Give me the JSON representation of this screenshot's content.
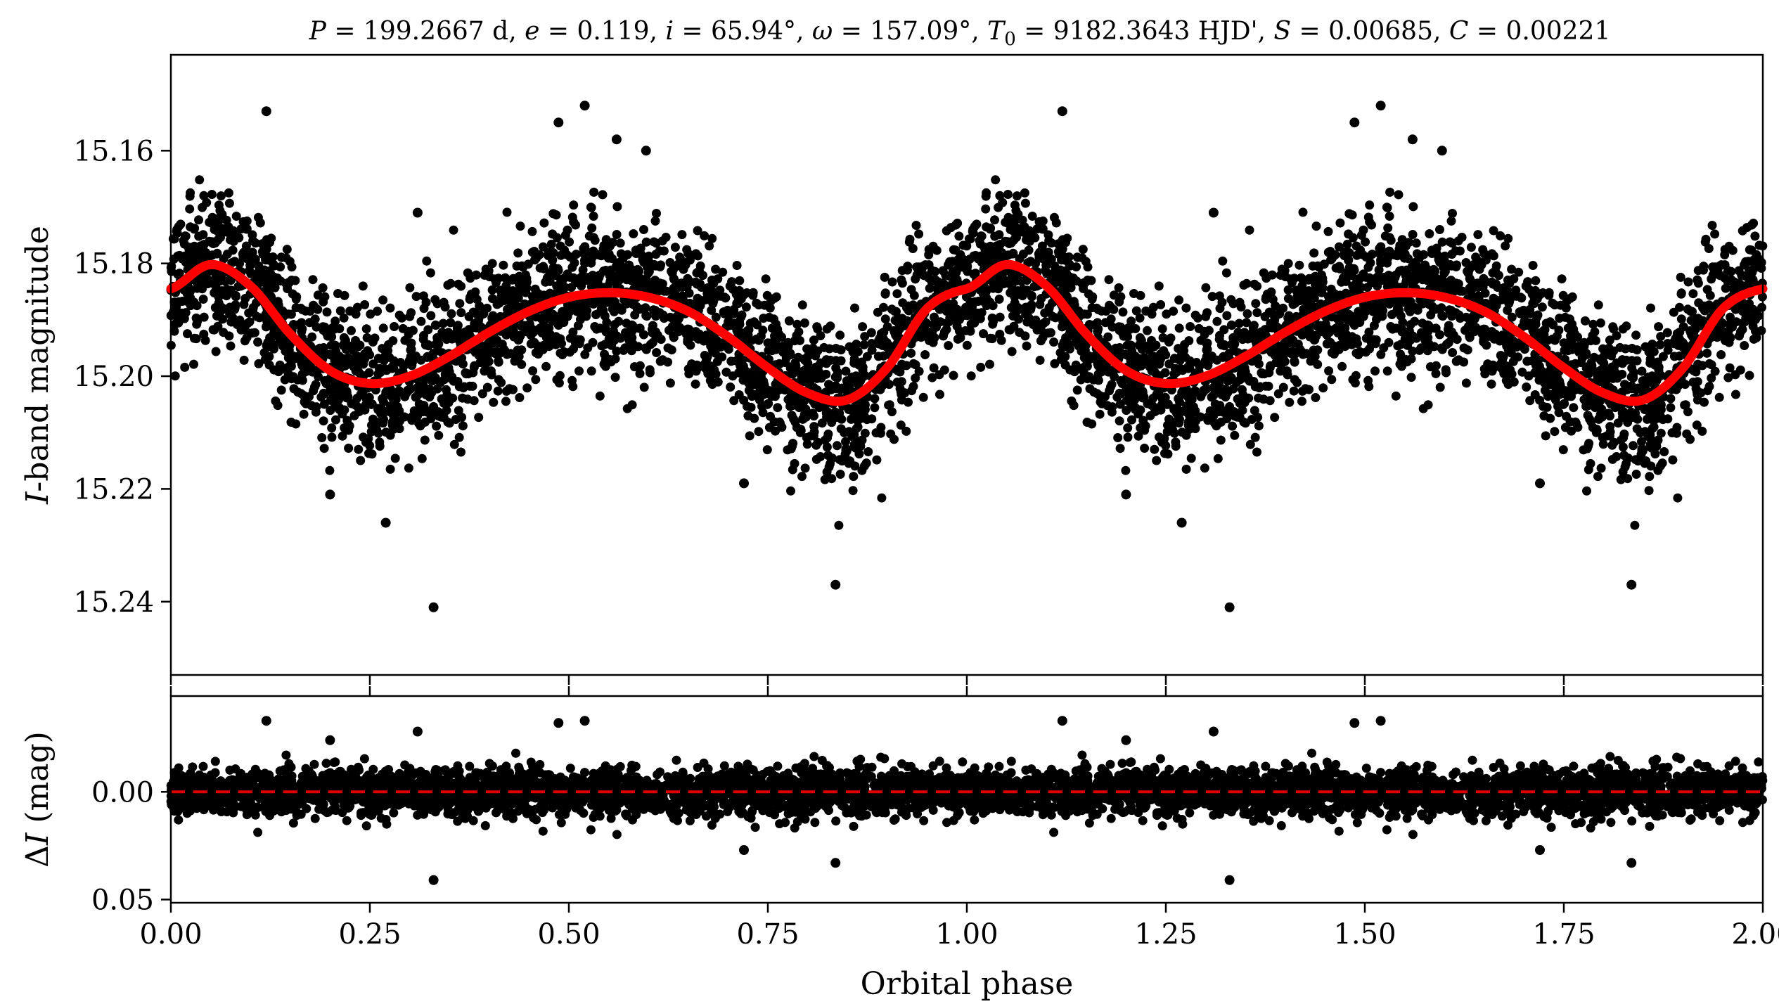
{
  "chart_data": [
    {
      "type": "scatter",
      "title": "P = 199.2667 d, e = 0.119, i = 65.94°, ω = 157.09°, T0 = 9182.3643 HJD', S = 0.00685, C = 0.00221",
      "title_parts": {
        "P_sym": "P",
        "P_text": " = 199.2667 d, ",
        "e_sym": "e",
        "e_text": " = 0.119, ",
        "i_sym": "i",
        "i_text": " = 65.94°, ",
        "w_sym": "ω",
        "w_text": " = 157.09°, ",
        "T_sym": "T",
        "T_sub": "0",
        "T_text": " = 9182.3643 HJD', ",
        "S_sym": "S",
        "S_text": " = 0.00685, ",
        "C_sym": "C",
        "C_text": " = 0.00221"
      },
      "xlabel": "",
      "ylabel": "I-band magnitude",
      "ylabel_parts": {
        "sym": "I",
        "rest": "-band magnitude"
      },
      "xlim": [
        0.0,
        2.0
      ],
      "ylim": [
        15.253,
        15.143
      ],
      "y_inverted": true,
      "yticks": [
        15.16,
        15.18,
        15.2,
        15.22,
        15.24
      ],
      "ytick_labels": [
        "15.16",
        "15.18",
        "15.20",
        "15.22",
        "15.24"
      ],
      "xticks": [
        0.0,
        0.25,
        0.5,
        0.75,
        1.0,
        1.25,
        1.5,
        1.75,
        2.0
      ],
      "grid": false,
      "series": [
        {
          "kind": "points",
          "color": "#000000",
          "note_count": 2600,
          "scatter_sigma": 0.0065,
          "outliers": [
            {
              "x": 0.12,
              "y": 15.153
            },
            {
              "x": 1.12,
              "y": 15.153
            },
            {
              "x": 0.487,
              "y": 15.155
            },
            {
              "x": 1.487,
              "y": 15.155
            },
            {
              "x": 0.52,
              "y": 15.152
            },
            {
              "x": 1.52,
              "y": 15.152
            },
            {
              "x": 0.56,
              "y": 15.158
            },
            {
              "x": 1.56,
              "y": 15.158
            },
            {
              "x": 0.597,
              "y": 15.16
            },
            {
              "x": 1.597,
              "y": 15.16
            },
            {
              "x": 0.33,
              "y": 15.241
            },
            {
              "x": 1.33,
              "y": 15.241
            },
            {
              "x": 0.835,
              "y": 15.237
            },
            {
              "x": 1.835,
              "y": 15.237
            },
            {
              "x": 0.27,
              "y": 15.226
            },
            {
              "x": 1.27,
              "y": 15.226
            },
            {
              "x": 0.72,
              "y": 15.219
            },
            {
              "x": 1.72,
              "y": 15.219
            },
            {
              "x": 0.2,
              "y": 15.221
            },
            {
              "x": 1.2,
              "y": 15.221
            },
            {
              "x": 0.31,
              "y": 15.171
            },
            {
              "x": 1.31,
              "y": 15.171
            }
          ]
        },
        {
          "kind": "model",
          "color": "#ff0000",
          "x": [
            0.0,
            0.05,
            0.1,
            0.15,
            0.2,
            0.25,
            0.3,
            0.35,
            0.4,
            0.45,
            0.5,
            0.55,
            0.6,
            0.65,
            0.7,
            0.75,
            0.8,
            0.85,
            0.9,
            0.95,
            1.0
          ],
          "y": [
            15.1845,
            15.1802,
            15.184,
            15.1925,
            15.199,
            15.2013,
            15.2,
            15.1965,
            15.1922,
            15.1885,
            15.186,
            15.1852,
            15.186,
            15.1885,
            15.193,
            15.1985,
            15.203,
            15.2042,
            15.1985,
            15.188,
            15.1845
          ]
        }
      ]
    },
    {
      "type": "scatter",
      "title": "",
      "xlabel": "Orbital phase",
      "ylabel": "ΔI (mag)",
      "ylabel_parts": {
        "delta": "Δ",
        "sym": "I",
        "rest": " (mag)"
      },
      "xlim": [
        0.0,
        2.0
      ],
      "ylim": [
        0.0515,
        -0.0445
      ],
      "y_inverted": true,
      "yticks": [
        0.0,
        0.05
      ],
      "ytick_labels": [
        "0.00",
        "0.05"
      ],
      "xticks": [
        0.0,
        0.25,
        0.5,
        0.75,
        1.0,
        1.25,
        1.5,
        1.75,
        2.0
      ],
      "xtick_labels": [
        "0.00",
        "0.25",
        "0.50",
        "0.75",
        "1.00",
        "1.25",
        "1.50",
        "1.75",
        "2.00"
      ],
      "grid": false,
      "series": [
        {
          "kind": "residual-points",
          "color": "#000000",
          "scatter_sigma": 0.0065,
          "outliers": [
            {
              "x": 0.12,
              "y": -0.033
            },
            {
              "x": 1.12,
              "y": -0.033
            },
            {
              "x": 0.487,
              "y": -0.032
            },
            {
              "x": 1.487,
              "y": -0.032
            },
            {
              "x": 0.52,
              "y": -0.033
            },
            {
              "x": 1.52,
              "y": -0.033
            },
            {
              "x": 0.33,
              "y": 0.041
            },
            {
              "x": 1.33,
              "y": 0.041
            },
            {
              "x": 0.835,
              "y": 0.033
            },
            {
              "x": 1.835,
              "y": 0.033
            },
            {
              "x": 0.72,
              "y": 0.027
            },
            {
              "x": 1.72,
              "y": 0.027
            },
            {
              "x": 0.31,
              "y": -0.028
            },
            {
              "x": 1.31,
              "y": -0.028
            },
            {
              "x": 0.2,
              "y": -0.024
            },
            {
              "x": 1.2,
              "y": -0.024
            }
          ]
        },
        {
          "kind": "zero-line",
          "color": "#e00000",
          "style": "dashed",
          "y": 0.0
        }
      ]
    }
  ]
}
